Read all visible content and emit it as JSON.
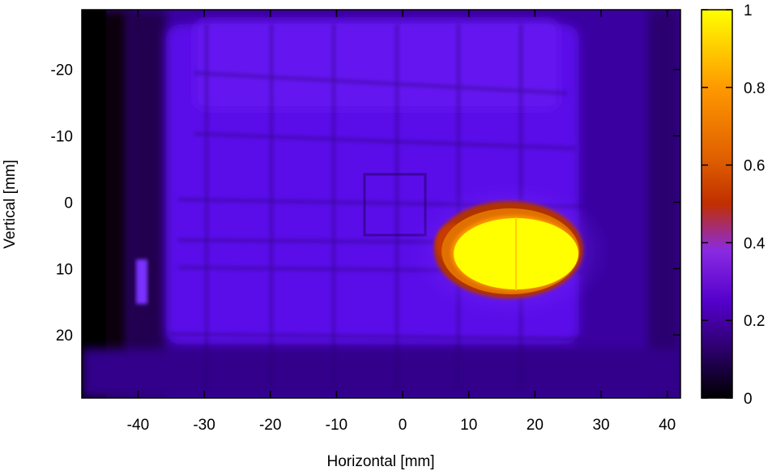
{
  "chart_data": {
    "type": "heatmap",
    "xlabel": "Horizontal [mm]",
    "ylabel": "Vertical [mm]",
    "xlim": [
      -48.5,
      42
    ],
    "ylim": [
      -29,
      29.5
    ],
    "y_axis_inverted": true,
    "x_ticks": [
      -40,
      -30,
      -20,
      -10,
      0,
      10,
      20,
      30,
      40
    ],
    "y_ticks": [
      -20,
      -10,
      0,
      10,
      20
    ],
    "colorbar": {
      "range": [
        0,
        1
      ],
      "ticks": [
        "0",
        "0.2",
        "0.4",
        "0.6",
        "0.8",
        "1"
      ],
      "palette": [
        "#000000",
        "#2a0066",
        "#5500cc",
        "#8a2be2",
        "#c02f00",
        "#e06000",
        "#ff9900",
        "#ffff00"
      ]
    },
    "grid": false,
    "hotspot": {
      "center_x": 16.5,
      "center_y": 7.5,
      "radius_x": 10.5,
      "radius_y": 6.5,
      "peak_value": 1.0
    }
  }
}
